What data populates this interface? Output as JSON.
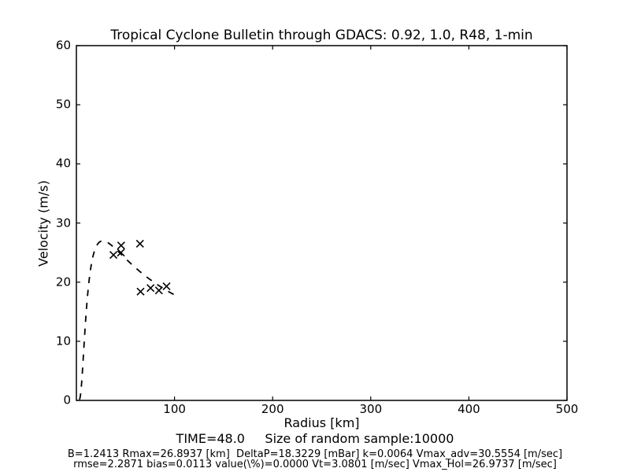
{
  "figure": {
    "title": "Tropical Cyclone Bulletin through GDACS: 0.92, 1.0, R48, 1-min",
    "xlabel": "Radius [km]",
    "ylabel": "Velocity (m/s)",
    "footer": {
      "time_line": "TIME=48.0     Size of random sample:10000",
      "params_line1": "B=1.2413 Rmax=26.8937 [km]  DeltaP=18.3229 [mBar] k=0.0064 Vmax_adv=30.5554 [m/sec]",
      "params_line2": "rmse=2.2871 bias=0.0113 value(\\%)=0.0000 Vt=3.0801 [m/sec] Vmax_Hol=26.9737 [m/sec]"
    },
    "colors": {
      "foreground": "#000000",
      "background": "#ffffff"
    }
  },
  "chart_data": {
    "type": "scatter",
    "title": "Tropical Cyclone Bulletin through GDACS: 0.92, 1.0, R48, 1-min",
    "xlabel": "Radius [km]",
    "ylabel": "Velocity (m/s)",
    "xlim": [
      0,
      500
    ],
    "ylim": [
      0,
      60
    ],
    "xticks": [
      100,
      200,
      300,
      400,
      500
    ],
    "yticks": [
      0,
      10,
      20,
      30,
      40,
      50,
      60
    ],
    "grid": false,
    "legend": "none",
    "series": [
      {
        "name": "bulletin-wind-observations",
        "type": "scatter",
        "marker": "x",
        "color": "#000000",
        "points_r_km_v_ms": [
          [
            37.8,
            24.6
          ],
          [
            45.4,
            25.0
          ],
          [
            45.6,
            26.2
          ],
          [
            64.8,
            26.5
          ],
          [
            65.4,
            18.4
          ],
          [
            75.6,
            19.0
          ],
          [
            84.1,
            18.6
          ],
          [
            91.9,
            19.3
          ]
        ]
      },
      {
        "name": "holland-profile-fit",
        "type": "line",
        "linestyle": "dashed",
        "color": "#000000",
        "model": "holland",
        "B": 1.2413,
        "Rmax_km": 26.8937,
        "Vmax_ms": 26.9737,
        "r_range_km": [
          3.2,
          103
        ]
      }
    ],
    "annotations": {
      "TIME": "48.0",
      "sample_size": "10000",
      "B": "1.2413",
      "Rmax_km": "26.8937",
      "DeltaP_mBar": "18.3229",
      "k": "0.0064",
      "Vmax_adv_msec": "30.5554",
      "rmse": "2.2871",
      "bias": "0.0113",
      "value_pct": "0.0000",
      "Vt_msec": "3.0801",
      "Vmax_Hol_msec": "26.9737"
    }
  }
}
